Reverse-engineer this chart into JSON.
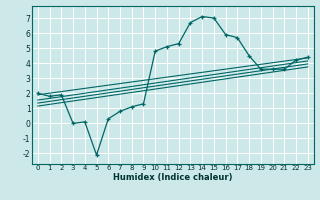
{
  "xlabel": "Humidex (Indice chaleur)",
  "bg_color": "#cce8e8",
  "grid_color": "#ffffff",
  "line_color": "#006666",
  "xlim": [
    -0.5,
    23.5
  ],
  "ylim": [
    -2.7,
    7.8
  ],
  "xticks": [
    0,
    1,
    2,
    3,
    4,
    5,
    6,
    7,
    8,
    9,
    10,
    11,
    12,
    13,
    14,
    15,
    16,
    17,
    18,
    19,
    20,
    21,
    22,
    23
  ],
  "yticks": [
    -2,
    -1,
    0,
    1,
    2,
    3,
    4,
    5,
    6,
    7
  ],
  "curve1_x": [
    0,
    1,
    2,
    3,
    4,
    5,
    6,
    7,
    8,
    9,
    10,
    11,
    12,
    13,
    14,
    15,
    16,
    17,
    18,
    19,
    20,
    21,
    22,
    23
  ],
  "curve1_y": [
    2.0,
    1.8,
    1.9,
    0.0,
    0.1,
    -2.1,
    0.3,
    0.8,
    1.1,
    1.3,
    4.8,
    5.1,
    5.3,
    6.7,
    7.1,
    7.0,
    5.9,
    5.7,
    4.5,
    3.6,
    3.6,
    3.6,
    4.2,
    4.4
  ],
  "line1_x": [
    0,
    23
  ],
  "line1_y": [
    1.9,
    4.35
  ],
  "line2_x": [
    0,
    23
  ],
  "line2_y": [
    1.55,
    4.15
  ],
  "line3_x": [
    0,
    23
  ],
  "line3_y": [
    1.35,
    3.95
  ],
  "line4_x": [
    0,
    23
  ],
  "line4_y": [
    1.15,
    3.75
  ]
}
